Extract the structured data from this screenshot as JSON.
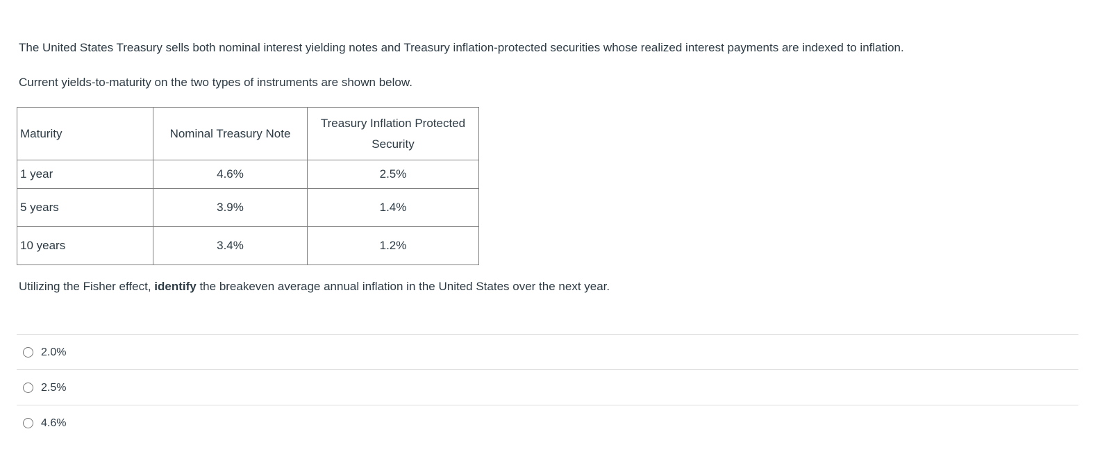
{
  "question": {
    "paragraph1": "The United States Treasury sells both nominal interest yielding notes and Treasury inflation-protected securities whose realized interest payments are indexed to inflation.",
    "paragraph2": "Current yields-to-maturity on the two types of instruments are shown below.",
    "prompt_prefix": "Utilizing the Fisher effect, ",
    "prompt_bold": "identify",
    "prompt_suffix": " the breakeven average annual inflation in the United States over the next year."
  },
  "table": {
    "headers": [
      "Maturity",
      "Nominal Treasury Note",
      "Treasury Inflation Protected Security"
    ],
    "rows": [
      {
        "maturity": "1 year",
        "nominal": "4.6%",
        "tips": "2.5%"
      },
      {
        "maturity": "5 years",
        "nominal": "3.9%",
        "tips": "1.4%"
      },
      {
        "maturity": "10 years",
        "nominal": "3.4%",
        "tips": "1.2%"
      }
    ]
  },
  "options": [
    {
      "label": "2.0%",
      "selected": false
    },
    {
      "label": "2.5%",
      "selected": false
    },
    {
      "label": "4.6%",
      "selected": false
    }
  ],
  "colors": {
    "text": "#2D3B45",
    "table_border": "#808080",
    "divider": "#dcdcdc",
    "radio_border": "#777777",
    "background": "#ffffff"
  }
}
